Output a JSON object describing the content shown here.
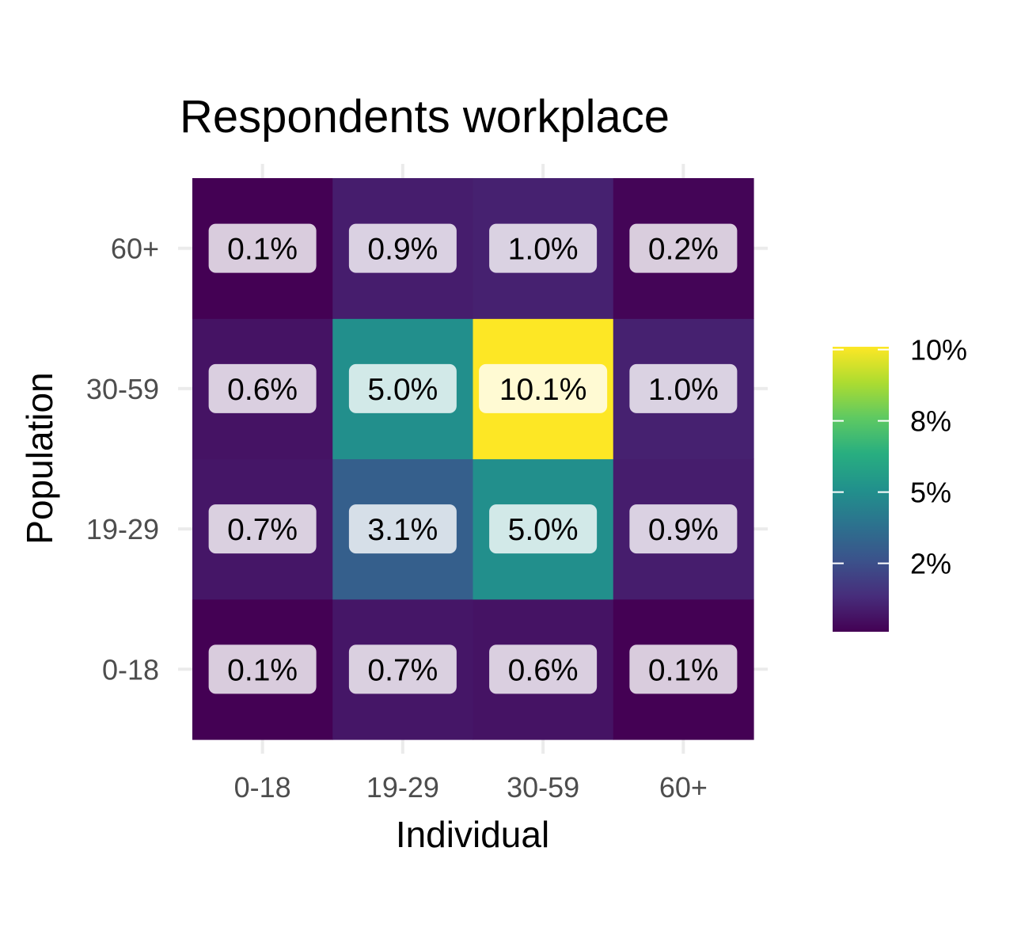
{
  "chart_data": {
    "type": "heatmap",
    "title": "Respondents workplace",
    "xlabel": "Individual",
    "ylabel": "Population",
    "x_categories": [
      "0-18",
      "19-29",
      "30-59",
      "60+"
    ],
    "y_categories": [
      "0-18",
      "19-29",
      "30-59",
      "60+"
    ],
    "values": [
      [
        0.1,
        0.7,
        0.6,
        0.1
      ],
      [
        0.7,
        3.1,
        5.0,
        0.9
      ],
      [
        0.6,
        5.0,
        10.1,
        1.0
      ],
      [
        0.1,
        0.9,
        1.0,
        0.2
      ]
    ],
    "labels": [
      [
        "0.1%",
        "0.7%",
        "0.6%",
        "0.1%"
      ],
      [
        "0.7%",
        "3.1%",
        "5.0%",
        "0.9%"
      ],
      [
        "0.6%",
        "5.0%",
        "10.1%",
        "1.0%"
      ],
      [
        "0.1%",
        "0.9%",
        "1.0%",
        "0.2%"
      ]
    ],
    "value_note": "values[i][j]: i indexes y_categories (Population), j indexes x_categories (Individual), in percent",
    "colorscale": "viridis",
    "color_range": [
      0.1,
      10.1
    ],
    "legend": {
      "position": "right",
      "ticks": [
        {
          "value": 2.5,
          "label": "2%"
        },
        {
          "value": 5.0,
          "label": "5%"
        },
        {
          "value": 7.5,
          "label": "8%"
        },
        {
          "value": 10.0,
          "label": "10%"
        }
      ]
    },
    "grid": true
  }
}
